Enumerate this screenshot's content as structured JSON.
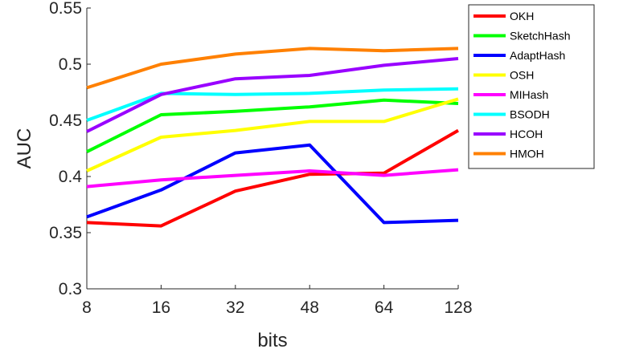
{
  "chart_data": {
    "type": "line",
    "categories": [
      "8",
      "16",
      "32",
      "48",
      "64",
      "128"
    ],
    "xlabel": "bits",
    "ylabel": "AUC",
    "ylim": [
      0.3,
      0.55
    ],
    "yticks": [
      "0.3",
      "0.35",
      "0.4",
      "0.45",
      "0.5",
      "0.55"
    ],
    "grid": false,
    "legend_position": "top-right",
    "series": [
      {
        "name": "OKH",
        "color": "#ff0000",
        "values": [
          0.359,
          0.356,
          0.387,
          0.402,
          0.403,
          0.441
        ]
      },
      {
        "name": "SketchHash",
        "color": "#00ff00",
        "values": [
          0.422,
          0.455,
          0.458,
          0.462,
          0.468,
          0.465
        ]
      },
      {
        "name": "AdaptHash",
        "color": "#0000ff",
        "values": [
          0.364,
          0.388,
          0.421,
          0.428,
          0.359,
          0.361
        ]
      },
      {
        "name": "OSH",
        "color": "#ffff00",
        "values": [
          0.405,
          0.435,
          0.441,
          0.449,
          0.449,
          0.469
        ]
      },
      {
        "name": "MIHash",
        "color": "#ff00ff",
        "values": [
          0.391,
          0.397,
          0.401,
          0.405,
          0.401,
          0.406
        ]
      },
      {
        "name": "BSODH",
        "color": "#00ffff",
        "values": [
          0.45,
          0.474,
          0.473,
          0.474,
          0.477,
          0.478
        ]
      },
      {
        "name": "HCOH",
        "color": "#9900ff",
        "values": [
          0.44,
          0.473,
          0.487,
          0.49,
          0.499,
          0.505
        ]
      },
      {
        "name": "HMOH",
        "color": "#ff8000",
        "values": [
          0.479,
          0.5,
          0.509,
          0.514,
          0.512,
          0.514
        ]
      }
    ]
  }
}
